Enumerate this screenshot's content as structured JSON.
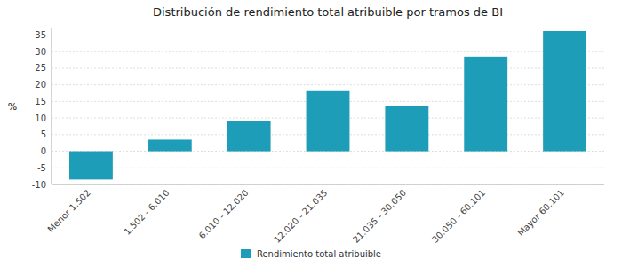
{
  "chart_data": {
    "type": "bar",
    "title": "Distribución de rendimiento total atribuible por tramos de BI",
    "ylabel": "%",
    "categories": [
      "Menor 1.502",
      "1.502 - 6.010",
      "6.010 - 12.020",
      "12.020 - 21.035",
      "21.035 - 30.050",
      "30.050 - 60.101",
      "Mayor 60.101"
    ],
    "series": [
      {
        "name": "Rendimiento total atribuible",
        "color": "#1e9db8",
        "values": [
          -8.5,
          3.5,
          9.2,
          18.1,
          13.5,
          28.5,
          36.2
        ]
      }
    ],
    "ylim": [
      -10,
      37
    ],
    "yticks": [
      -10,
      -5,
      0,
      5,
      10,
      15,
      20,
      25,
      30,
      35
    ],
    "grid": true,
    "legend": "bottom"
  }
}
